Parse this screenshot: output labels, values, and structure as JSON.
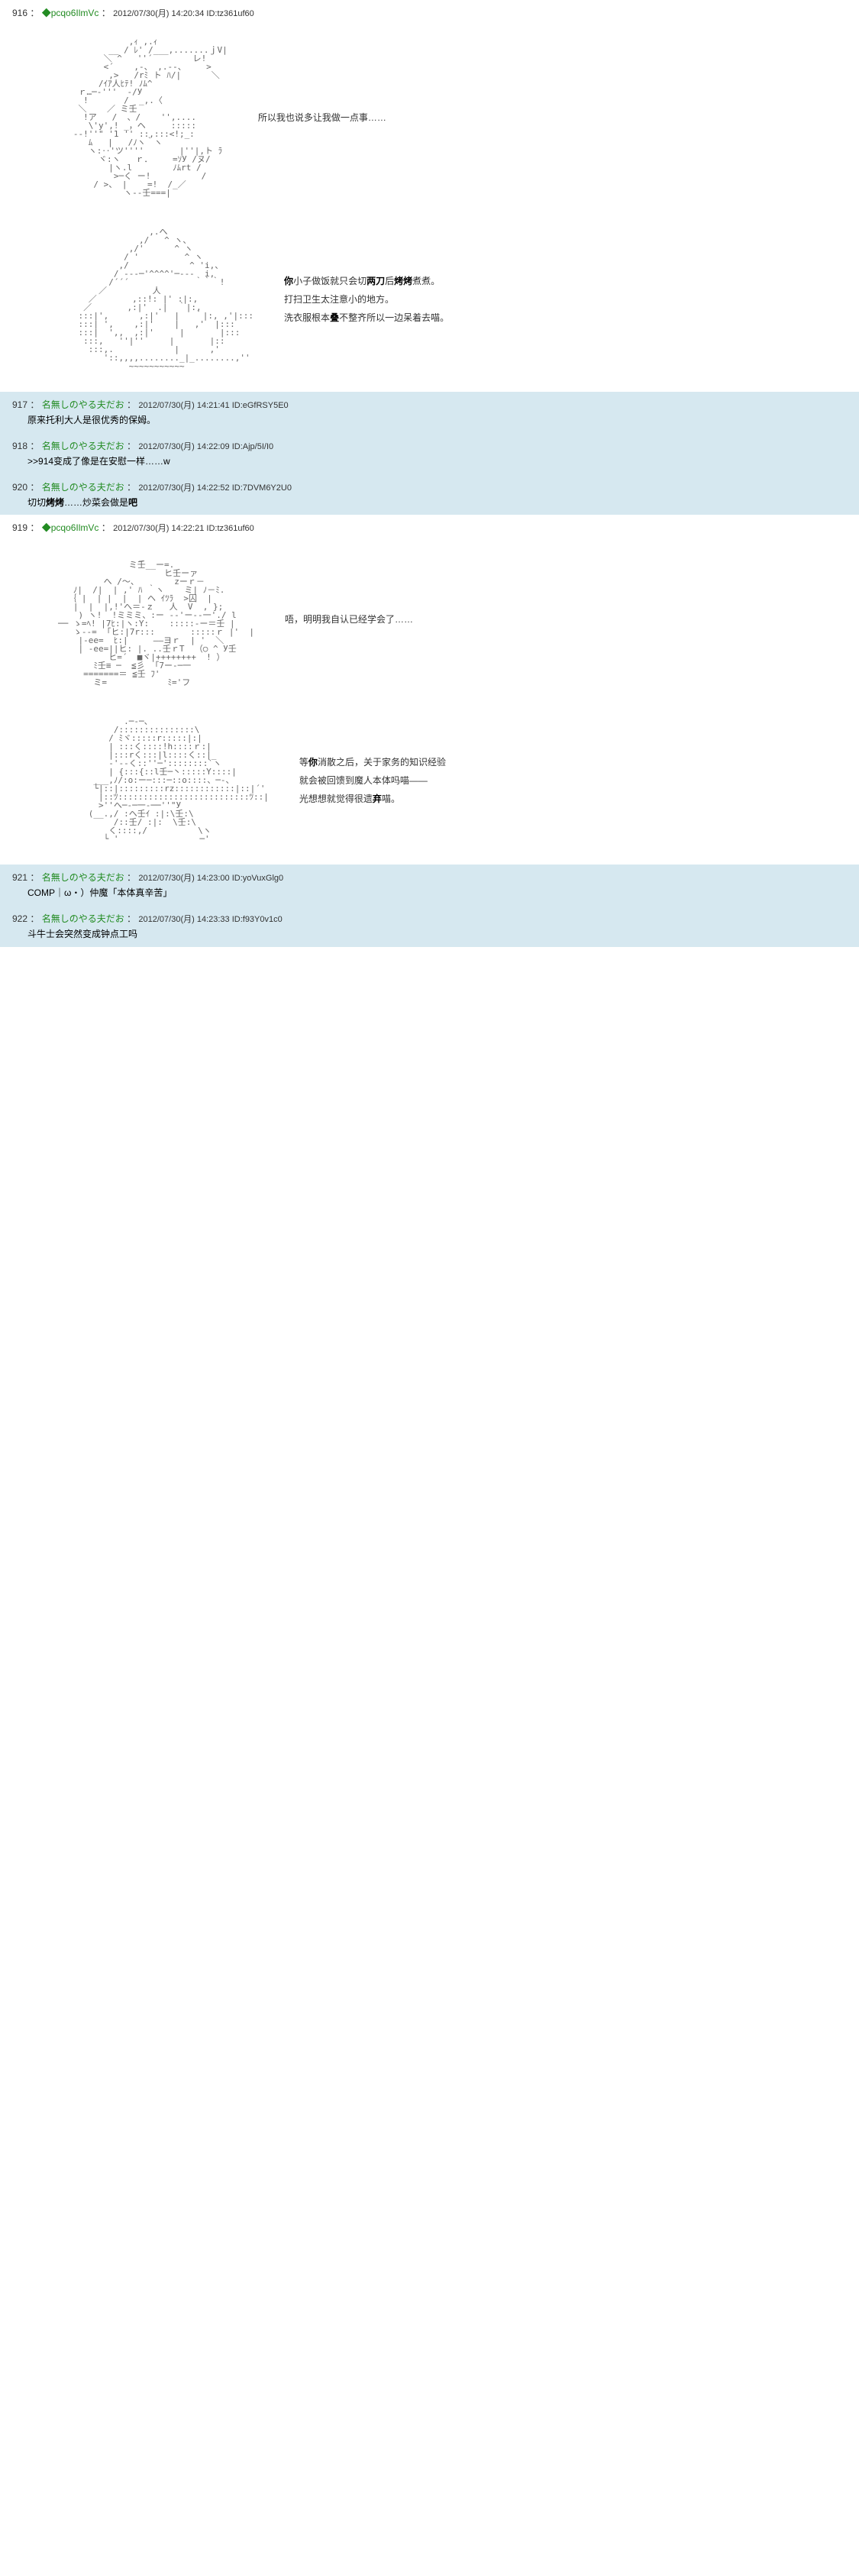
{
  "colors": {
    "background": "#ffffff",
    "reply_background": "#d6e8f0",
    "text": "#333333",
    "name": "#228B22",
    "ascii": "#666666"
  },
  "posts": [
    {
      "num": "916",
      "name": "◆pcqo6IlmVc",
      "date": "2012/07/30(月) 14:20:34",
      "id": "ID:tz361uf60",
      "type": "main",
      "sections": [
        {
          "aa_placeholder": "[ASCII art character 1 - figure with pointed hat]",
          "text_lines": [
            "所以我也说多让我做一点事……"
          ]
        },
        {
          "aa_placeholder": "[ASCII art character 2 - round figure with hat]",
          "text_lines": [
            "<b>你</b>小子做饭就只会切<b>两刀</b>后<b>烤烤</b>煮煮。",
            "打扫卫生太注意小的地方。",
            "洗衣服根本<b>叠</b>不整齐所以一边呆着去喵。"
          ]
        }
      ]
    },
    {
      "num": "917",
      "name": "名無しのやる夫だお",
      "date": "2012/07/30(月) 14:21:41",
      "id": "ID:eGfRSY5E0",
      "type": "reply",
      "content": "原来托利大人是很优秀的保姆。"
    },
    {
      "num": "918",
      "name": "名無しのやる夫だお",
      "date": "2012/07/30(月) 14:22:09",
      "id": "ID:Ajp/5I/I0",
      "type": "reply",
      "content": ">>914变成了像是在安慰一样……w"
    },
    {
      "num": "920",
      "name": "名無しのやる夫だお",
      "date": "2012/07/30(月) 14:22:52",
      "id": "ID:7DVM6Y2U0",
      "type": "reply",
      "content": "切切<b>烤烤</b>……炒菜会做是<b>吧</b>"
    },
    {
      "num": "919",
      "name": "◆pcqo6IlmVc",
      "date": "2012/07/30(月) 14:22:21",
      "id": "ID:tz361uf60",
      "type": "main",
      "sections": [
        {
          "aa_placeholder": "[ASCII art character 3 - figure with raised arm]",
          "text_lines": [
            "唔，明明我自认已经学会了……"
          ]
        },
        {
          "aa_placeholder": "[ASCII art character 4 - small hooded figure]",
          "text_lines": [
            "等<b>你</b>消散之后，关于家务的知识经验",
            "就会被回馈到魔人本体吗喵——",
            "",
            "光想想就觉得很遗<b>弃</b>喵。"
          ]
        }
      ]
    },
    {
      "num": "921",
      "name": "名無しのやる夫だお",
      "date": "2012/07/30(月) 14:23:00",
      "id": "ID:yoVuxGlg0",
      "type": "reply",
      "content": "COMP｜ω・）仲魔「本体真辛苦」"
    },
    {
      "num": "922",
      "name": "名無しのやる夫だお",
      "date": "2012/07/30(月) 14:23:33",
      "id": "ID:f93Y0v1c0",
      "type": "reply",
      "content": "斗牛士会突然变成钟点工吗"
    }
  ],
  "ascii_samples": {
    "aa1": "              ,ｨ ,.ｨ\n          __ / ﾚ' /___,.......ｊV|\n         ＼ ^   ''´        レ!\n         <´    ,-、 ,.--、    >\n          ,>   /rﾐ ト ﾊ/|      ＼\n        /ｲｱ人ﾋﾃ! ﾉﾑ^\n    ｒ…─‐'''  ‐/У\n     !       /  _,.〈\n    ＼    ／ ミ壬\n     !ア   /  、/    '',....\n      \\'y',! _，ヘ     :::::\n   -‐!''\" '1 '' ::,:::<!;_:\n      ﾑ   |   /ﾉヽ｀ヽ\n      ヽ:‥'ツ''''       |''|,ト ﾗ\n        ヾ:ヽ   ｒ．    =ｿУ /ヌ/\n          |ヽ.l        ﾉﾑrt /\n           >─く ー!          /\n       / >、 |    =!  /_／\n             ヽ--壬===|",
    "aa2": "                  ,.へ\n                ,/   ^ ヽ、\n              ,/'      ^ ヽ\n             / '         ^ ヽ\n            ,/            ^ 'i,、\n           / ---─'^^^^'─---  i,\n          /´´´             ｀｀｀!\n        ／         人\n      ／       ,::!: |' :|:,\n     ／       ,:|'  .|  ｀|:,\n    :::|',      ,:|'   |   ｀|:, ,'|:::\n    :::| ',    ,:|'    |   ,'  |:::\n    :::|  ',,  ,:|'     |       |:::\n     :::,   ''|''     |       |::\n      :::,.            |      ,'\n         '::,,,,........_|_........,''\n              ~~~~~~~~~~~",
    "aa3": "                _\n              ミ壬__ー=.\n                     ヒ壬ーァ\n         へ /～、       zーｒ－\n   ﾉ|  /|  | ,' ﾊ ｀ヽ    ミ| ﾉ－ﾐ.\n  ｛ |  | |  |  | ヘ ｲﾂﾗ  >囚  |\n   |  |  |,!'へ＝-ｚ   人  V  , };\n    ) ヽ!  !ミミミ、:ー --'ー--一'./ l\n── ゝ=ﾍ! |7ﾋ:|ヽ:Y:    :::::-ー＝壬 |\n   ゝ--=  ｢ヒ:|7r:::       :::::ｒ |'  |\n    |-ee=  ﾋ:|     ——ヨｒ  | '  ＼\n    | -ee=||ヒ: |. ..壬ｒT  （○ ^ У壬\n          ヒ=´  ■ヾ|++++++++  ! ）\n       ﾐ壬≡ ─  ≦彡  ｢7ー-─一\n     =======＝ ≦壬 ﾌ'\n       ミ=            ﾐ='フ",
    "aa4": "             .─‐─、\n           /:::::::::::::::\\\n          / ﾐヾ:::::r:::::|:|\n          | :::く::::!h::::ｒ:|\n          |:::rく:::|l::::く::|_\n          -'--く::''─'::::::::`ヽ\n          | {:::{::l壬─丶:::::Y::::|\n       ___,ﾉ/:o:ー─:::─::o::::、─‐、\n       └|::|:::::::::rz::::::::::::|::|´'\n        |::ﾂ::::::::::::::::::::::::::ﾂ::|\n        >''へ─-─一-──''\"У\n      (__.,/ :ヘ壬ｲ :|:\\壬:\\\n           /::壬/ :|:  \\壬:\\\n          く::::,/          \\ヽ\n         └ '                ─'"
  }
}
